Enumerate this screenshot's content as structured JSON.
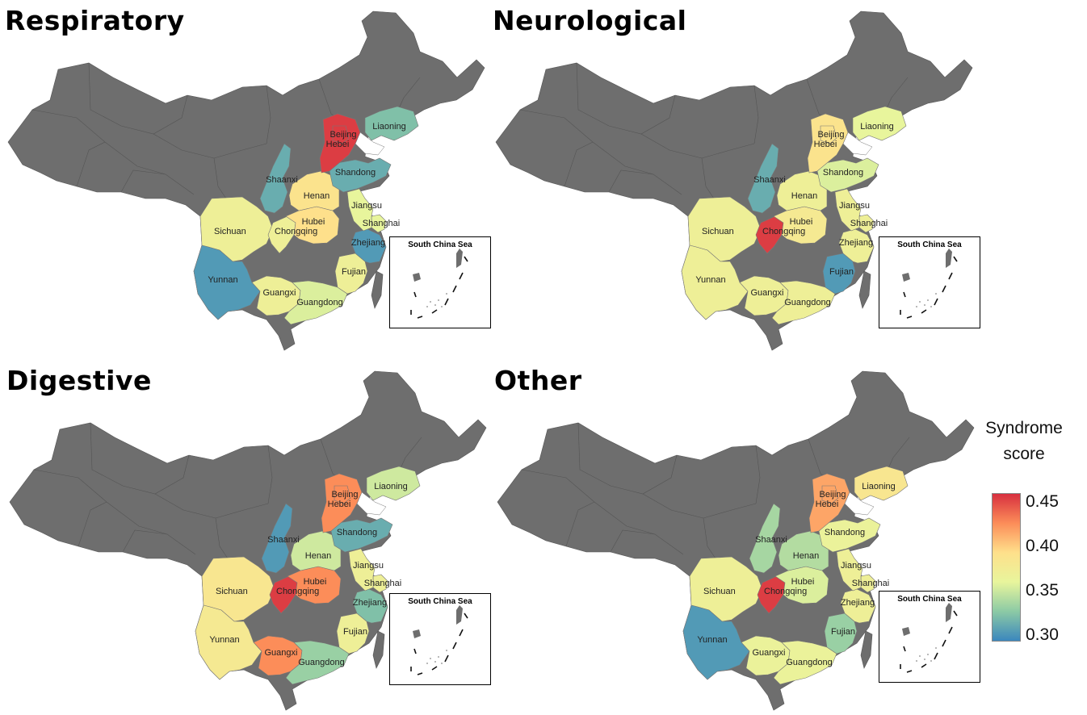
{
  "legend": {
    "title_line1": "Syndrome",
    "title_line2": "score",
    "ticks": [
      "0.45",
      "0.40",
      "0.35",
      "0.30"
    ],
    "colors": [
      "#3b87bd",
      "#8ccaa5",
      "#e8f59c",
      "#fee08b",
      "#fc8d59",
      "#d7303f"
    ],
    "range": [
      0.29,
      0.465
    ]
  },
  "inset_title": "South China Sea",
  "no_data_color": "#6e6e6e",
  "panels": [
    {
      "title": "Respiratory",
      "provinces": [
        {
          "id": "sichuan",
          "label": "Sichuan",
          "score": 0.37
        },
        {
          "id": "chongqing",
          "label": "Chongqing",
          "score": 0.37
        },
        {
          "id": "yunnan",
          "label": "Yunnan",
          "score": 0.3
        },
        {
          "id": "guangxi",
          "label": "Guangxi",
          "score": 0.37
        },
        {
          "id": "guangdong",
          "label": "Guangdong",
          "score": 0.355
        },
        {
          "id": "fujian",
          "label": "Fujian",
          "score": 0.37
        },
        {
          "id": "zhejiang",
          "label": "Zhejiang",
          "score": 0.3
        },
        {
          "id": "shanghai",
          "label": "Shanghai",
          "score": 0.36
        },
        {
          "id": "jiangsu",
          "label": "Jiangsu",
          "score": 0.36
        },
        {
          "id": "hubei",
          "label": "Hubei",
          "score": 0.395
        },
        {
          "id": "henan",
          "label": "Henan",
          "score": 0.39
        },
        {
          "id": "shaanxi",
          "label": "Shaanxi",
          "score": 0.31
        },
        {
          "id": "shandong",
          "label": "Shandong",
          "score": 0.31
        },
        {
          "id": "hebei",
          "label": "Hebei",
          "score": 0.46
        },
        {
          "id": "beijing",
          "label": "Beijing",
          "score": 0.46
        },
        {
          "id": "liaoning",
          "label": "Liaoning",
          "score": 0.32
        }
      ]
    },
    {
      "title": "Neurological",
      "provinces": [
        {
          "id": "sichuan",
          "label": "Sichuan",
          "score": 0.37
        },
        {
          "id": "chongqing",
          "label": "Chongqing",
          "score": 0.46
        },
        {
          "id": "yunnan",
          "label": "Yunnan",
          "score": 0.37
        },
        {
          "id": "guangxi",
          "label": "Guangxi",
          "score": 0.37
        },
        {
          "id": "guangdong",
          "label": "Guangdong",
          "score": 0.37
        },
        {
          "id": "fujian",
          "label": "Fujian",
          "score": 0.3
        },
        {
          "id": "zhejiang",
          "label": "Zhejiang",
          "score": 0.37
        },
        {
          "id": "shanghai",
          "label": "Shanghai",
          "score": 0.37
        },
        {
          "id": "jiangsu",
          "label": "Jiangsu",
          "score": 0.37
        },
        {
          "id": "hubei",
          "label": "Hubei",
          "score": 0.38
        },
        {
          "id": "henan",
          "label": "Henan",
          "score": 0.37
        },
        {
          "id": "shaanxi",
          "label": "Shaanxi",
          "score": 0.31
        },
        {
          "id": "shandong",
          "label": "Shandong",
          "score": 0.355
        },
        {
          "id": "hebei",
          "label": "Hebei",
          "score": 0.39
        },
        {
          "id": "beijing",
          "label": "Beijing",
          "score": 0.39
        },
        {
          "id": "liaoning",
          "label": "Liaoning",
          "score": 0.36
        }
      ]
    },
    {
      "title": "Digestive",
      "provinces": [
        {
          "id": "sichuan",
          "label": "Sichuan",
          "score": 0.385
        },
        {
          "id": "chongqing",
          "label": "Chongqing",
          "score": 0.46
        },
        {
          "id": "yunnan",
          "label": "Yunnan",
          "score": 0.38
        },
        {
          "id": "guangxi",
          "label": "Guangxi",
          "score": 0.43
        },
        {
          "id": "guangdong",
          "label": "Guangdong",
          "score": 0.33
        },
        {
          "id": "fujian",
          "label": "Fujian",
          "score": 0.37
        },
        {
          "id": "zhejiang",
          "label": "Zhejiang",
          "score": 0.32
        },
        {
          "id": "shanghai",
          "label": "Shanghai",
          "score": 0.37
        },
        {
          "id": "jiangsu",
          "label": "Jiangsu",
          "score": 0.37
        },
        {
          "id": "hubei",
          "label": "Hubei",
          "score": 0.43
        },
        {
          "id": "henan",
          "label": "Henan",
          "score": 0.35
        },
        {
          "id": "shaanxi",
          "label": "Shaanxi",
          "score": 0.3
        },
        {
          "id": "shandong",
          "label": "Shandong",
          "score": 0.31
        },
        {
          "id": "hebei",
          "label": "Hebei",
          "score": 0.43
        },
        {
          "id": "beijing",
          "label": "Beijing",
          "score": 0.43
        },
        {
          "id": "liaoning",
          "label": "Liaoning",
          "score": 0.35
        }
      ]
    },
    {
      "title": "Other",
      "provinces": [
        {
          "id": "sichuan",
          "label": "Sichuan",
          "score": 0.37
        },
        {
          "id": "chongqing",
          "label": "Chongqing",
          "score": 0.46
        },
        {
          "id": "yunnan",
          "label": "Yunnan",
          "score": 0.3
        },
        {
          "id": "guangxi",
          "label": "Guangxi",
          "score": 0.365
        },
        {
          "id": "guangdong",
          "label": "Guangdong",
          "score": 0.365
        },
        {
          "id": "fujian",
          "label": "Fujian",
          "score": 0.33
        },
        {
          "id": "zhejiang",
          "label": "Zhejiang",
          "score": 0.37
        },
        {
          "id": "shanghai",
          "label": "Shanghai",
          "score": 0.37
        },
        {
          "id": "jiangsu",
          "label": "Jiangsu",
          "score": 0.37
        },
        {
          "id": "hubei",
          "label": "Hubei",
          "score": 0.355
        },
        {
          "id": "henan",
          "label": "Henan",
          "score": 0.34
        },
        {
          "id": "shaanxi",
          "label": "Shaanxi",
          "score": 0.335
        },
        {
          "id": "shandong",
          "label": "Shandong",
          "score": 0.365
        },
        {
          "id": "hebei",
          "label": "Hebei",
          "score": 0.42
        },
        {
          "id": "beijing",
          "label": "Beijing",
          "score": 0.42
        },
        {
          "id": "liaoning",
          "label": "Liaoning",
          "score": 0.385
        }
      ]
    }
  ]
}
